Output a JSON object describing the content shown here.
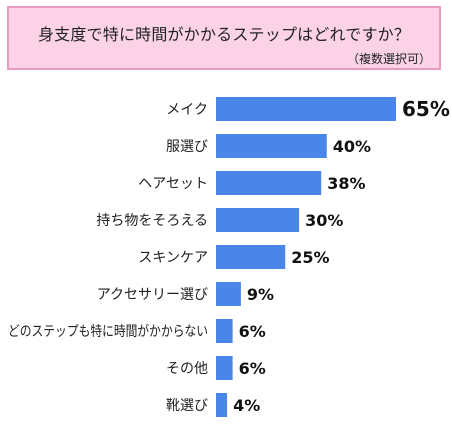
{
  "chart_data": {
    "type": "bar",
    "orientation": "horizontal",
    "title": "身支度で特に時間がかかるステップはどれですか？",
    "subtitle": "（複数選択可）",
    "categories": [
      "メイク",
      "服選び",
      "ヘアセット",
      "持ち物をそろえる",
      "スキンケア",
      "アクセサリー選び",
      "どのステップも特に時間がかからない",
      "その他",
      "靴選び"
    ],
    "values": [
      65,
      40,
      38,
      30,
      25,
      9,
      6,
      6,
      4
    ],
    "value_labels": [
      "65%",
      "40%",
      "38%",
      "30%",
      "25%",
      "9%",
      "6%",
      "6%",
      "4%"
    ],
    "unit": "%",
    "xlim": [
      0,
      65
    ],
    "grid": false,
    "legend": "none",
    "bar_color": "#4a86e8",
    "title_bg_color": "#fbd2e6",
    "title_border_color": "#e89ac0"
  }
}
